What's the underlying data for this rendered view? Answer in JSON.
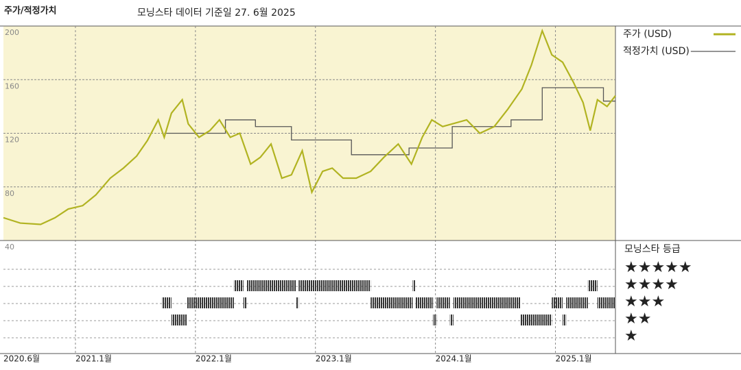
{
  "chart_data": {
    "type": "line",
    "title": "주가/적정가치",
    "subtitle": "모닝스타 데이터 기준일 27. 6월 2025",
    "xlim": [
      2020.4,
      2025.5
    ],
    "xticks": [
      {
        "value": 2020.4,
        "label": "2020.6월"
      },
      {
        "value": 2021.0,
        "label": "2021.1월"
      },
      {
        "value": 2022.0,
        "label": "2022.1월"
      },
      {
        "value": 2023.0,
        "label": "2023.1월"
      },
      {
        "value": 2024.0,
        "label": "2024.1월"
      },
      {
        "value": 2025.0,
        "label": "2025.1월"
      }
    ],
    "ylim": [
      40,
      200
    ],
    "yticks": [
      200,
      160,
      120,
      80,
      40
    ],
    "grid": true,
    "background": "#f9f4d2",
    "series": [
      {
        "name": "주가 (USD)",
        "color": "#b1b321",
        "step": false,
        "x": [
          2020.4,
          2020.54,
          2020.71,
          2020.83,
          2020.94,
          2021.06,
          2021.17,
          2021.29,
          2021.4,
          2021.51,
          2021.6,
          2021.69,
          2021.74,
          2021.8,
          2021.89,
          2021.94,
          2022.03,
          2022.12,
          2022.2,
          2022.29,
          2022.37,
          2022.46,
          2022.54,
          2022.63,
          2022.72,
          2022.8,
          2022.89,
          2022.97,
          2023.06,
          2023.14,
          2023.23,
          2023.34,
          2023.46,
          2023.57,
          2023.69,
          2023.8,
          2023.89,
          2023.97,
          2024.06,
          2024.14,
          2024.26,
          2024.37,
          2024.49,
          2024.6,
          2024.72,
          2024.8,
          2024.89,
          2024.97,
          2025.06,
          2025.15,
          2025.23,
          2025.29,
          2025.35,
          2025.43,
          2025.5
        ],
        "values": [
          57,
          53,
          52,
          57,
          63.5,
          66,
          74,
          86.5,
          94,
          103,
          114.6,
          130,
          117,
          135,
          145,
          127,
          117,
          122,
          130,
          117,
          120,
          97,
          102,
          112,
          86.5,
          89,
          107,
          76,
          91.6,
          94,
          86.5,
          86.5,
          91.6,
          102,
          112,
          97,
          117,
          130,
          125,
          127,
          130,
          120,
          125,
          137.6,
          153,
          171,
          196.5,
          178.5,
          173,
          158,
          143,
          122,
          145,
          140,
          148
        ]
      },
      {
        "name": "적정가치 (USD)",
        "color": "#555555",
        "step": true,
        "x": [
          2021.74,
          2022.25,
          2022.5,
          2022.8,
          2023.3,
          2023.78,
          2024.14,
          2024.63,
          2024.89,
          2025.4,
          2025.5
        ],
        "values": [
          120,
          130,
          125,
          115,
          104,
          109,
          125,
          130,
          154,
          144,
          144
        ]
      }
    ],
    "rating_title": "모닝스타 등급",
    "rating_labels": [
      "★★★★★",
      "★★★★",
      "★★★",
      "★★",
      "★"
    ],
    "rating_levels": [
      5,
      4,
      3,
      2,
      1
    ],
    "rating_periods": [
      {
        "start": 2021.72,
        "end": 2021.8,
        "rating": 3
      },
      {
        "start": 2021.8,
        "end": 2021.93,
        "rating": 2
      },
      {
        "start": 2021.93,
        "end": 2022.32,
        "rating": 3
      },
      {
        "start": 2022.32,
        "end": 2022.4,
        "rating": 4
      },
      {
        "start": 2022.4,
        "end": 2022.43,
        "rating": 3
      },
      {
        "start": 2022.43,
        "end": 2022.84,
        "rating": 4
      },
      {
        "start": 2022.84,
        "end": 2022.86,
        "rating": 3
      },
      {
        "start": 2022.86,
        "end": 2023.46,
        "rating": 4
      },
      {
        "start": 2023.46,
        "end": 2023.81,
        "rating": 3
      },
      {
        "start": 2023.81,
        "end": 2023.83,
        "rating": 4
      },
      {
        "start": 2023.83,
        "end": 2023.98,
        "rating": 3
      },
      {
        "start": 2023.98,
        "end": 2024.01,
        "rating": 2
      },
      {
        "start": 2024.01,
        "end": 2024.12,
        "rating": 3
      },
      {
        "start": 2024.12,
        "end": 2024.15,
        "rating": 2
      },
      {
        "start": 2024.15,
        "end": 2024.71,
        "rating": 3
      },
      {
        "start": 2024.71,
        "end": 2024.97,
        "rating": 2
      },
      {
        "start": 2024.97,
        "end": 2025.06,
        "rating": 3
      },
      {
        "start": 2025.06,
        "end": 2025.09,
        "rating": 2
      },
      {
        "start": 2025.09,
        "end": 2025.27,
        "rating": 3
      },
      {
        "start": 2025.27,
        "end": 2025.35,
        "rating": 4
      },
      {
        "start": 2025.35,
        "end": 2025.5,
        "rating": 3
      }
    ]
  }
}
